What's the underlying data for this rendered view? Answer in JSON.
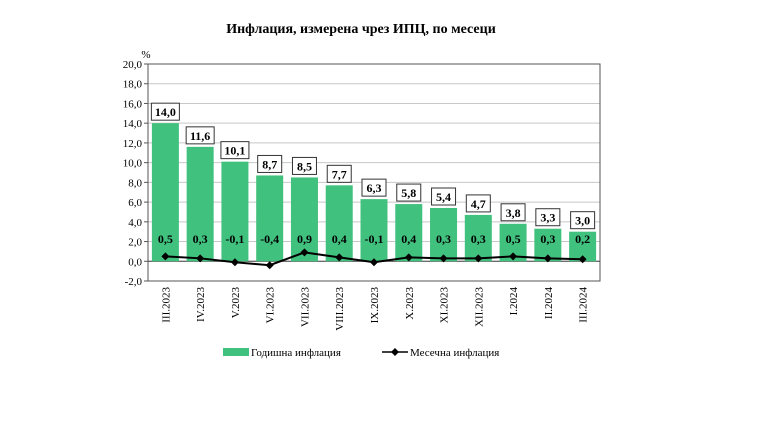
{
  "chart_data": {
    "type": "bar",
    "title": "Инфлация, измерена чрез ИПЦ, по месеци",
    "ylabel": "%",
    "xlabel": "",
    "ylim": [
      -2,
      20
    ],
    "yticks": [
      -2,
      0,
      2,
      4,
      6,
      8,
      10,
      12,
      14,
      16,
      18,
      20
    ],
    "ytick_labels": [
      "-2,0",
      "0,0",
      "2,0",
      "4,0",
      "6,0",
      "8,0",
      "10,0",
      "12,0",
      "14,0",
      "16,0",
      "18,0",
      "20,0"
    ],
    "grid": true,
    "legend_position": "bottom",
    "categories": [
      "III.2023",
      "IV.2023",
      "V.2023",
      "VI.2023",
      "VII.2023",
      "VIII.2023",
      "IX.2023",
      "X.2023",
      "XI.2023",
      "XII.2023",
      "I.2024",
      "II.2024",
      "III.2024"
    ],
    "series": [
      {
        "name": "Годишна инфлация",
        "type": "bar",
        "color": "#41c17e",
        "values": [
          14.0,
          11.6,
          10.1,
          8.7,
          8.5,
          7.7,
          6.3,
          5.8,
          5.4,
          4.7,
          3.8,
          3.3,
          3.0
        ],
        "labels": [
          "14,0",
          "11,6",
          "10,1",
          "8,7",
          "8,5",
          "7,7",
          "6,3",
          "5,8",
          "5,4",
          "4,7",
          "3,8",
          "3,3",
          "3,0"
        ]
      },
      {
        "name": "Месечна инфлация",
        "type": "line",
        "color": "#000000",
        "values": [
          0.5,
          0.3,
          -0.1,
          -0.4,
          0.9,
          0.4,
          -0.1,
          0.4,
          0.3,
          0.3,
          0.5,
          0.3,
          0.2
        ],
        "labels": [
          "0,5",
          "0,3",
          "-0,1",
          "-0,4",
          "0,9",
          "0,4",
          "-0,1",
          "0,4",
          "0,3",
          "0,3",
          "0,5",
          "0,3",
          "0,2"
        ]
      }
    ]
  }
}
